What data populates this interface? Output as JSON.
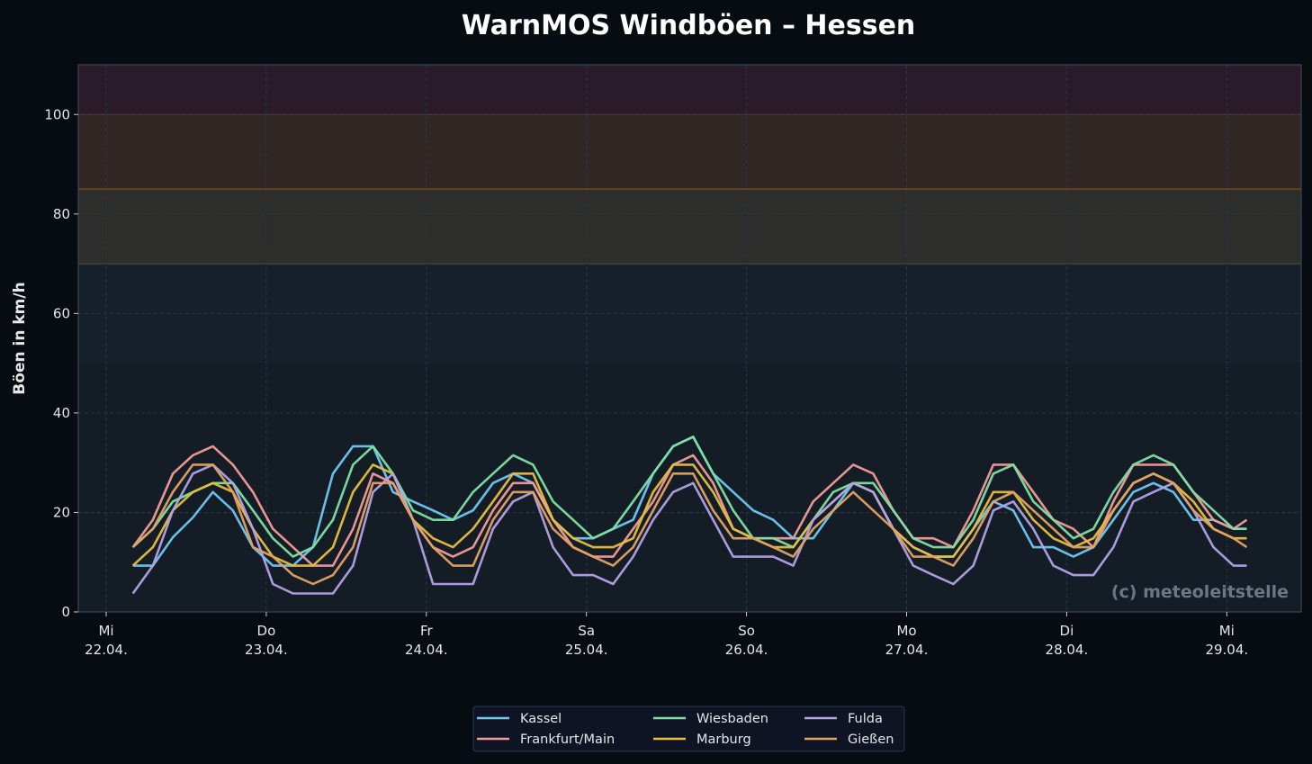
{
  "chart_data": {
    "type": "line",
    "title": "WarnMOS Windböen – Hessen",
    "xlabel": "",
    "ylabel": "Böen in km/h",
    "ylim": [
      0,
      110
    ],
    "yticks": [
      0,
      20,
      40,
      60,
      80,
      100
    ],
    "grid": true,
    "legend_position": "bottom-center",
    "watermark": "(c) meteoleitstelle",
    "xticks": [
      {
        "weekday": "Mi",
        "date": "22.04."
      },
      {
        "weekday": "Do",
        "date": "23.04."
      },
      {
        "weekday": "Fr",
        "date": "24.04."
      },
      {
        "weekday": "Sa",
        "date": "25.04."
      },
      {
        "weekday": "So",
        "date": "26.04."
      },
      {
        "weekday": "Mo",
        "date": "27.04."
      },
      {
        "weekday": "Di",
        "date": "28.04."
      },
      {
        "weekday": "Mi",
        "date": "29.04."
      }
    ],
    "bands": [
      {
        "from": 0,
        "to": 50,
        "color": "#141c25"
      },
      {
        "from": 50,
        "to": 70,
        "color": "#15202a"
      },
      {
        "from": 70,
        "to": 85,
        "color": "#2d2d2b",
        "edge": "#3d4631"
      },
      {
        "from": 85,
        "to": 100,
        "color": "#302725",
        "edge": "#6b4a22"
      },
      {
        "from": 100,
        "to": 110,
        "color": "#291b29",
        "edge": "#5a2e2a"
      }
    ],
    "x": [
      "22.04. 04:00",
      "22.04. 07:00",
      "22.04. 10:00",
      "22.04. 13:00",
      "22.04. 16:00",
      "22.04. 19:00",
      "22.04. 22:00",
      "23.04. 01:00",
      "23.04. 04:00",
      "23.04. 07:00",
      "23.04. 10:00",
      "23.04. 13:00",
      "23.04. 16:00",
      "23.04. 19:00",
      "23.04. 22:00",
      "24.04. 01:00",
      "24.04. 04:00",
      "24.04. 07:00",
      "24.04. 10:00",
      "24.04. 13:00",
      "24.04. 16:00",
      "24.04. 19:00",
      "24.04. 22:00",
      "25.04. 01:00",
      "25.04. 04:00",
      "25.04. 07:00",
      "25.04. 10:00",
      "25.04. 13:00",
      "25.04. 16:00",
      "25.04. 19:00",
      "25.04. 22:00",
      "26.04. 01:00",
      "26.04. 04:00",
      "26.04. 07:00",
      "26.04. 10:00",
      "26.04. 13:00",
      "26.04. 16:00",
      "26.04. 19:00",
      "26.04. 22:00",
      "27.04. 01:00",
      "27.04. 04:00",
      "27.04. 07:00",
      "27.04. 10:00",
      "27.04. 13:00",
      "27.04. 16:00",
      "27.04. 19:00",
      "27.04. 22:00",
      "28.04. 01:00",
      "28.04. 04:00",
      "28.04. 07:00",
      "28.04. 10:00",
      "28.04. 13:00",
      "28.04. 16:00",
      "28.04. 19:00",
      "28.04. 22:00",
      "29.04. 01:00",
      "29.04. 03:00"
    ],
    "series": [
      {
        "name": "Kassel",
        "color": "#6ec8f2",
        "values": [
          9.3,
          9.3,
          15,
          19,
          24.1,
          20.4,
          13,
          9.3,
          9.3,
          13,
          27.8,
          33.3,
          33.3,
          24.1,
          22.2,
          20.4,
          18.5,
          20.4,
          25.9,
          27.8,
          25.9,
          18.5,
          14.8,
          14.8,
          16.7,
          18.5,
          27.8,
          33.3,
          35.2,
          27.8,
          24.1,
          20.4,
          18.5,
          14.8,
          14.8,
          20.4,
          25.9,
          24.1,
          16.7,
          13,
          11.1,
          11.1,
          16.7,
          22.2,
          20.4,
          13,
          13,
          11.1,
          13,
          18.5,
          24.1,
          25.9,
          24.1,
          18.5,
          18.5,
          16.7,
          16.7
        ]
      },
      {
        "name": "Frankfurt/Main",
        "color": "#f29b9b",
        "values": [
          13,
          18.5,
          27.8,
          31.5,
          33.3,
          29.6,
          24.1,
          16.7,
          13,
          9.3,
          9.3,
          16.7,
          27.8,
          25.9,
          18.5,
          13,
          11.1,
          13,
          20.4,
          25.9,
          25.9,
          18.5,
          13,
          11.1,
          11.1,
          16.7,
          22.2,
          29.6,
          31.5,
          25.9,
          16.7,
          14.8,
          14.8,
          14.8,
          22.2,
          25.9,
          29.6,
          27.8,
          20.4,
          14.8,
          14.8,
          13,
          20.4,
          29.6,
          29.6,
          24.1,
          18.5,
          16.7,
          13,
          22.2,
          29.6,
          29.6,
          29.6,
          24.1,
          18.5,
          16.7,
          18.5
        ]
      },
      {
        "name": "Wiesbaden",
        "color": "#7fe0a2",
        "values": [
          13,
          16.7,
          22.2,
          24.1,
          25.9,
          25.9,
          20.4,
          14.8,
          11.1,
          13,
          18.5,
          29.6,
          33.3,
          27.8,
          20.4,
          18.5,
          18.5,
          24.1,
          27.8,
          31.5,
          29.6,
          22.2,
          18.5,
          14.8,
          16.7,
          22.2,
          27.8,
          33.3,
          35.2,
          27.8,
          20.4,
          14.8,
          14.8,
          13,
          18.5,
          24.1,
          25.9,
          25.9,
          20.4,
          14.8,
          13,
          13,
          18.5,
          27.8,
          29.6,
          22.2,
          18.5,
          14.8,
          16.7,
          24.1,
          29.6,
          31.5,
          29.6,
          24.1,
          20.4,
          16.7,
          16.7
        ]
      },
      {
        "name": "Marburg",
        "color": "#e6bf3e",
        "values": [
          9.3,
          13,
          20.4,
          24.1,
          25.9,
          24.1,
          16.7,
          11.1,
          9.3,
          9.3,
          13,
          24.1,
          29.6,
          27.8,
          18.5,
          14.8,
          13,
          16.7,
          22.2,
          27.8,
          27.8,
          18.5,
          14.8,
          13,
          13,
          14.8,
          24.1,
          29.6,
          29.6,
          24.1,
          16.7,
          14.8,
          13,
          13,
          18.5,
          22.2,
          25.9,
          24.1,
          16.7,
          13,
          11.1,
          11.1,
          16.7,
          24.1,
          24.1,
          18.5,
          14.8,
          13,
          14.8,
          20.4,
          25.9,
          27.8,
          25.9,
          22.2,
          16.7,
          14.8,
          14.8
        ]
      },
      {
        "name": "Fulda",
        "color": "#b3a2e6",
        "values": [
          3.7,
          9.3,
          20.4,
          27.8,
          29.6,
          25.9,
          16.7,
          5.6,
          3.7,
          3.7,
          3.7,
          9.3,
          24.1,
          27.8,
          18.5,
          5.6,
          5.6,
          5.6,
          16.7,
          22.2,
          24.1,
          13,
          7.4,
          7.4,
          5.6,
          11.1,
          18.5,
          24.1,
          25.9,
          18.5,
          11.1,
          11.1,
          11.1,
          9.3,
          18.5,
          22.2,
          25.9,
          24.1,
          16.7,
          9.3,
          7.4,
          5.6,
          9.3,
          20.4,
          22.2,
          16.7,
          9.3,
          7.4,
          7.4,
          13,
          22.2,
          24.1,
          25.9,
          20.4,
          13,
          9.3,
          9.3
        ]
      },
      {
        "name": "Gießen",
        "color": "#e3a263",
        "values": [
          13,
          16.7,
          24.1,
          29.6,
          29.6,
          24.1,
          13,
          11.1,
          7.4,
          5.6,
          7.4,
          13,
          25.9,
          25.9,
          18.5,
          13,
          9.3,
          9.3,
          18.5,
          24.1,
          24.1,
          16.7,
          13,
          11.1,
          9.3,
          13,
          20.4,
          27.8,
          27.8,
          20.4,
          14.8,
          14.8,
          13,
          11.1,
          16.7,
          20.4,
          24.1,
          20.4,
          16.7,
          11.1,
          11.1,
          9.3,
          14.8,
          22.2,
          24.1,
          20.4,
          16.7,
          13,
          13,
          20.4,
          25.9,
          27.8,
          25.9,
          20.4,
          16.7,
          14.8,
          13
        ]
      }
    ]
  }
}
